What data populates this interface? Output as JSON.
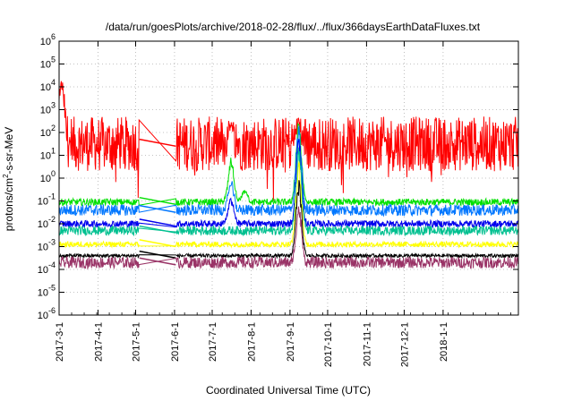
{
  "chart_data": {
    "type": "line",
    "title": "/data/run/goesPlots/archive/2018-02-28/flux/../flux/366daysEarthDataFluxes.txt",
    "xlabel": "Coordinated Universal Time (UTC)",
    "ylabel_main": "protons/cm",
    "ylabel_sup": "2",
    "ylabel_tail": "-s-sr-MeV",
    "yscale": "log",
    "ylim_exp": [
      -6,
      6
    ],
    "yticks": [
      {
        "base": "10",
        "exp": "6"
      },
      {
        "base": "10",
        "exp": "5"
      },
      {
        "base": "10",
        "exp": "4"
      },
      {
        "base": "10",
        "exp": "3"
      },
      {
        "base": "10",
        "exp": "2"
      },
      {
        "base": "10",
        "exp": "1"
      },
      {
        "base": "10",
        "exp": "0"
      },
      {
        "base": "10",
        "exp": "-1"
      },
      {
        "base": "10",
        "exp": "-2"
      },
      {
        "base": "10",
        "exp": "-3"
      },
      {
        "base": "10",
        "exp": "-4"
      },
      {
        "base": "10",
        "exp": "-5"
      },
      {
        "base": "10",
        "exp": "-6"
      }
    ],
    "xlim_days": [
      0,
      366
    ],
    "xticks": [
      {
        "label": "2017-3-1",
        "day": 0
      },
      {
        "label": "2017-4-1",
        "day": 31
      },
      {
        "label": "2017-5-1",
        "day": 61
      },
      {
        "label": "2017-6-1",
        "day": 92
      },
      {
        "label": "2017-7-1",
        "day": 122
      },
      {
        "label": "2017-8-1",
        "day": 153
      },
      {
        "label": "2017-9-1",
        "day": 184
      },
      {
        "label": "2017-10-1",
        "day": 214
      },
      {
        "label": "2017-11-1",
        "day": 245
      },
      {
        "label": "2017-12-1",
        "day": 275
      },
      {
        "label": "2018-1-1",
        "day": 306
      }
    ],
    "grid": true,
    "data_gap_days": [
      64,
      93
    ],
    "series": [
      {
        "color": "#ff0000",
        "base_log": 1.5,
        "noise": 1.2,
        "spikes": [
          {
            "day": 137,
            "log": 2.5
          },
          {
            "day": 191,
            "log": 2.7
          },
          {
            "day": 2,
            "log": 4.5
          }
        ]
      },
      {
        "color": "#00e000",
        "base_log": -1.05,
        "noise": 0.15,
        "spikes": [
          {
            "day": 137,
            "log": 1.0
          },
          {
            "day": 148,
            "log": -0.5
          },
          {
            "day": 191,
            "log": 2.7
          }
        ]
      },
      {
        "color": "#0077ff",
        "base_log": -1.4,
        "noise": 0.25,
        "spikes": [
          {
            "day": 137,
            "log": 0.0
          },
          {
            "day": 191,
            "log": 2.5
          }
        ]
      },
      {
        "color": "#0000ee",
        "base_log": -2.0,
        "noise": 0.15,
        "spikes": [
          {
            "day": 137,
            "log": -0.8
          },
          {
            "day": 191,
            "log": 2.0
          }
        ]
      },
      {
        "color": "#00c090",
        "base_log": -2.3,
        "noise": 0.2,
        "spikes": [
          {
            "day": 191,
            "log": 1.5
          }
        ]
      },
      {
        "color": "#ffff00",
        "base_log": -2.9,
        "noise": 0.12,
        "spikes": [
          {
            "day": 191,
            "log": 0.8
          }
        ]
      },
      {
        "color": "#000000",
        "base_log": -3.4,
        "noise": 0.08,
        "spikes": [
          {
            "day": 191,
            "log": 0.0
          }
        ]
      },
      {
        "color": "#993366",
        "base_log": -3.7,
        "noise": 0.25,
        "spikes": [
          {
            "day": 191,
            "log": -1.0
          }
        ]
      }
    ]
  }
}
